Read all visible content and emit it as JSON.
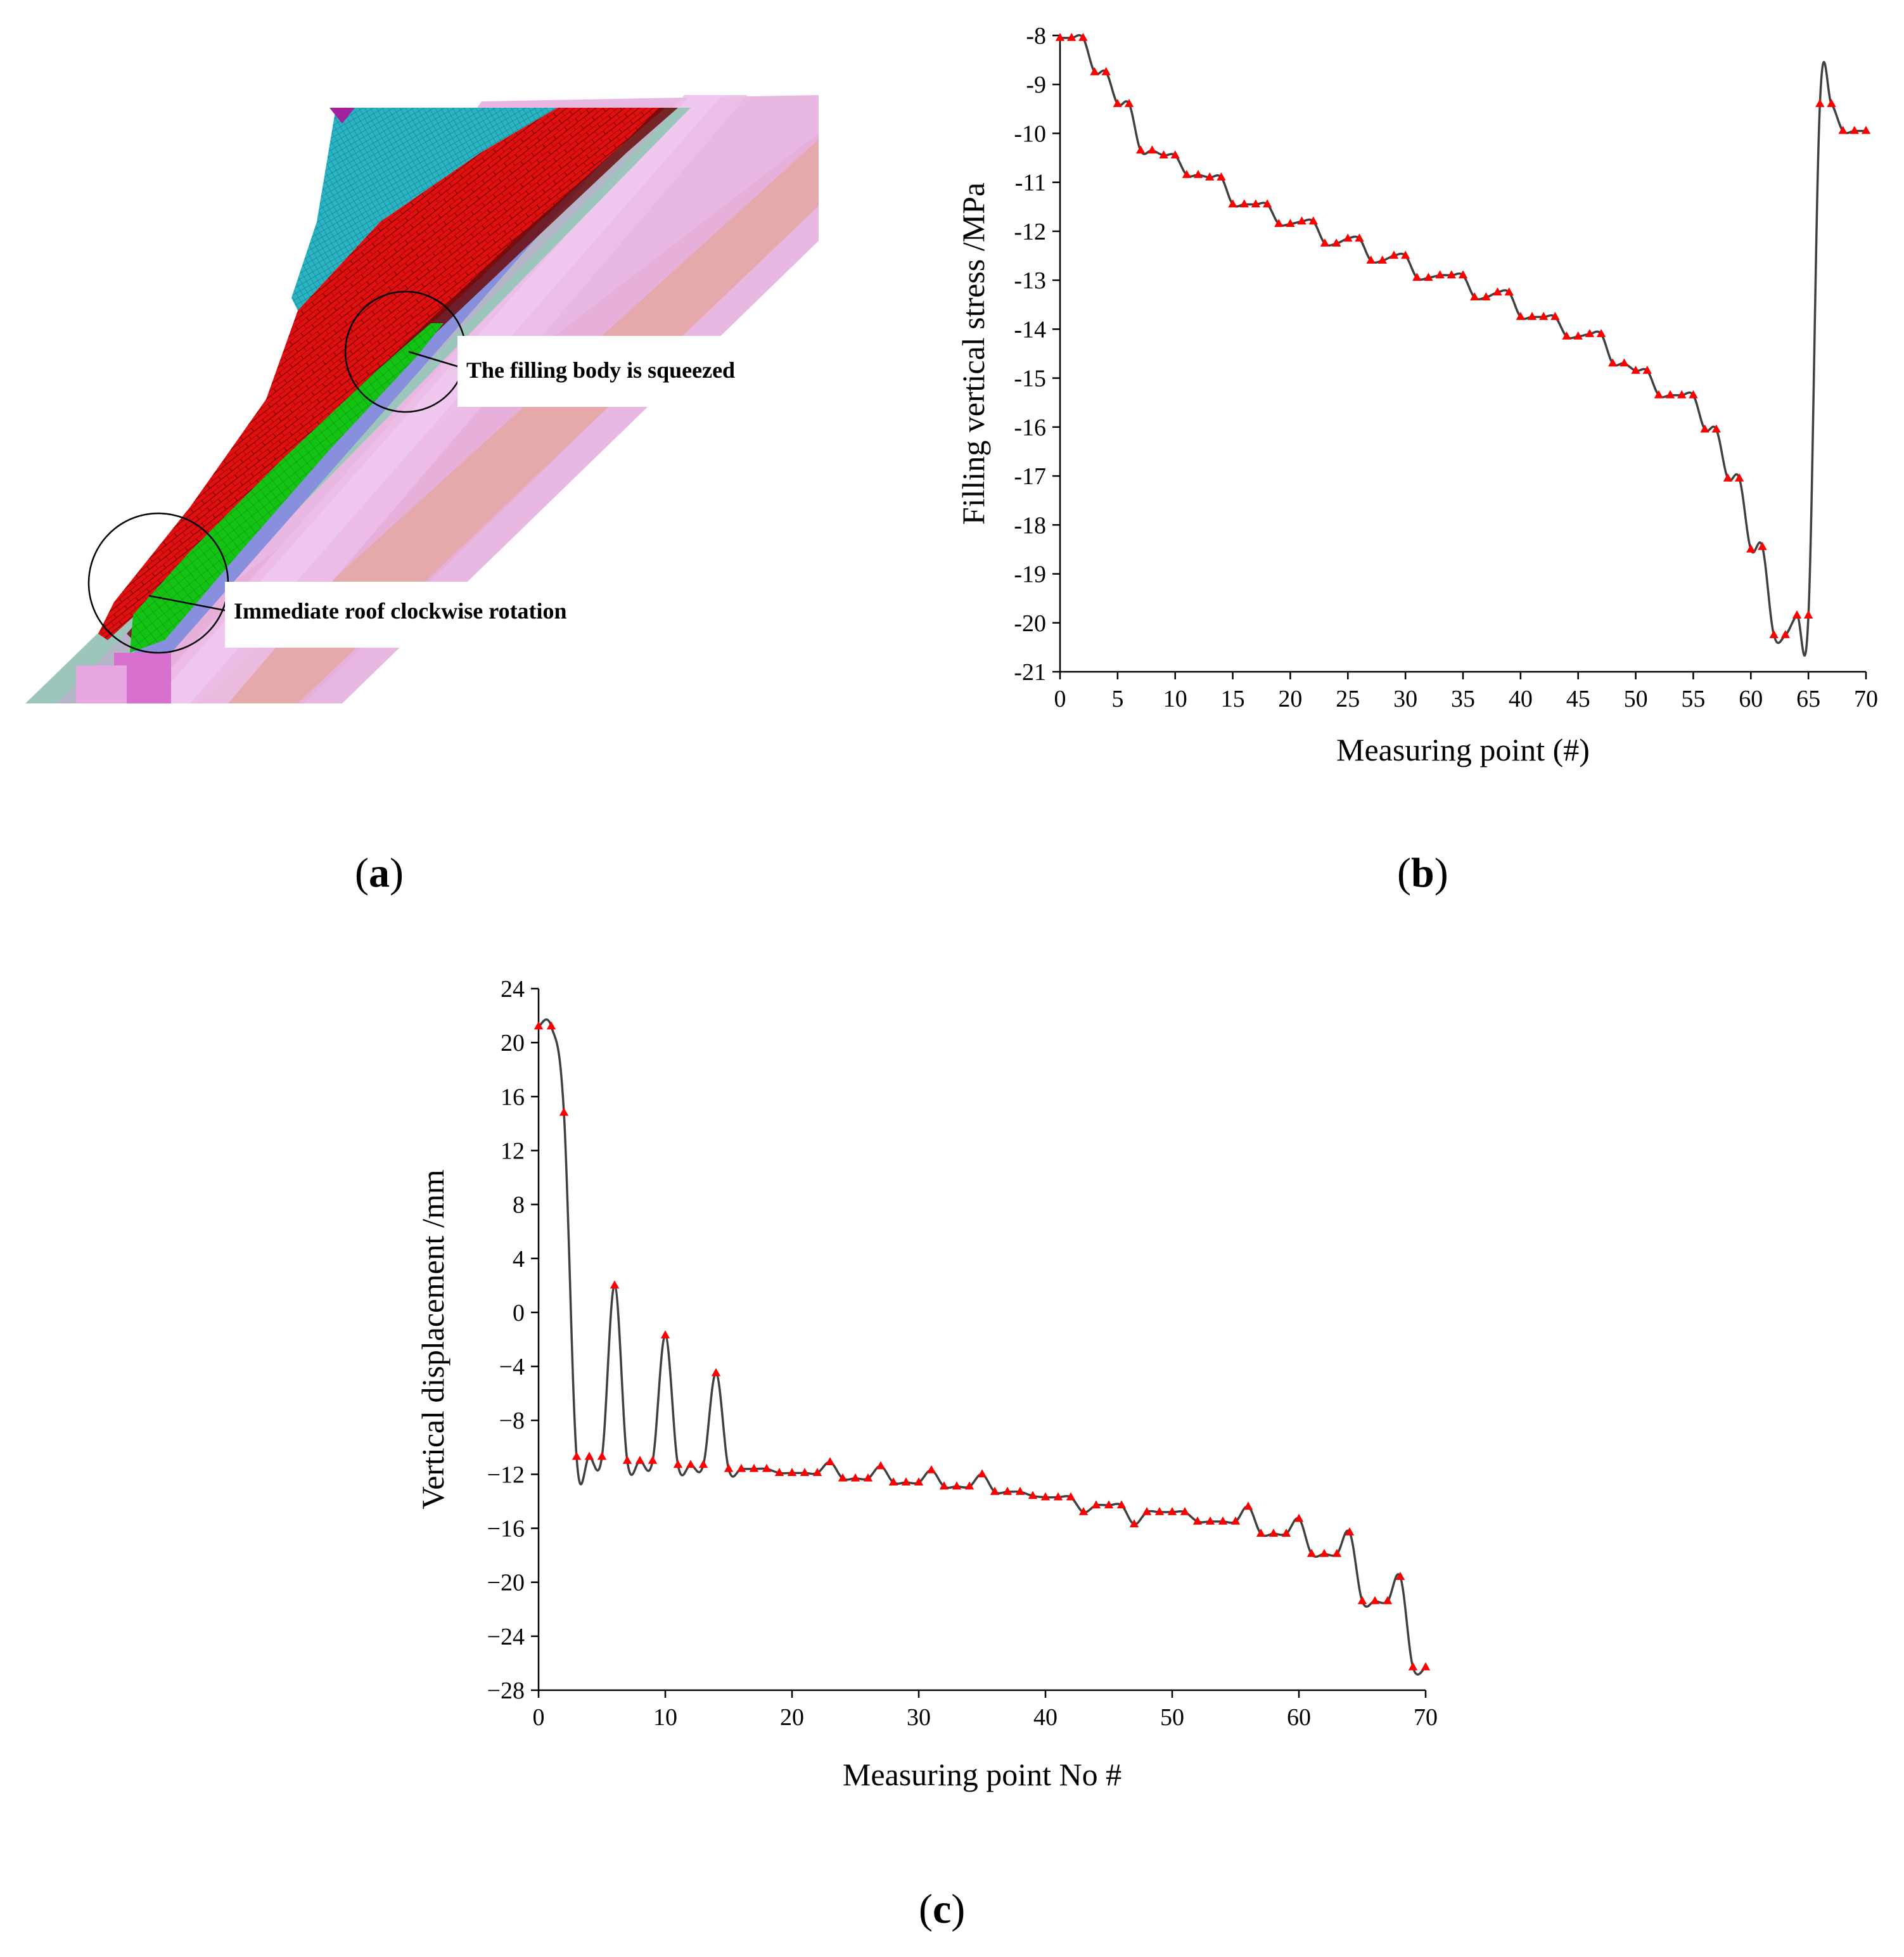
{
  "captions": {
    "a": "a",
    "b": "b",
    "c": "c"
  },
  "panel_a": {
    "annotation_top": "The filling body is squeezed",
    "annotation_bottom": "Immediate roof clockwise rotation",
    "colors": {
      "mesh_red": "#e01010",
      "mesh_cyan": "#2ab3c3",
      "filling_green": "#14c214",
      "pink_strata": "#e6b0e0",
      "salmon_strata": "#e6aaa8",
      "teal_strip": "#9cc6bc",
      "blue_strip": "#8890dd",
      "magenta": "#a020a0"
    }
  },
  "chart_data": [
    {
      "id": "b",
      "type": "line",
      "xlabel": "Measuring point (#)",
      "ylabel": "Filling vertical stress /MPa",
      "xlim": [
        0,
        70
      ],
      "ylim": [
        -21,
        -8
      ],
      "xticks": [
        0,
        5,
        10,
        15,
        20,
        25,
        30,
        35,
        40,
        45,
        50,
        55,
        60,
        65,
        70
      ],
      "yticks": [
        -8,
        -9,
        -10,
        -11,
        -12,
        -13,
        -14,
        -15,
        -16,
        -17,
        -18,
        -19,
        -20,
        -21
      ],
      "line_color": "#404040",
      "marker_color": "#ff0000",
      "marker": "triangle",
      "x": [
        0,
        1,
        2,
        3,
        4,
        5,
        6,
        7,
        8,
        9,
        10,
        11,
        12,
        13,
        14,
        15,
        16,
        17,
        18,
        19,
        20,
        21,
        22,
        23,
        24,
        25,
        26,
        27,
        28,
        29,
        30,
        31,
        32,
        33,
        34,
        35,
        36,
        37,
        38,
        39,
        40,
        41,
        42,
        43,
        44,
        45,
        46,
        47,
        48,
        49,
        50,
        51,
        52,
        53,
        54,
        55,
        56,
        57,
        58,
        59,
        60,
        61,
        62,
        63,
        64,
        65,
        66,
        67,
        68,
        69,
        70
      ],
      "y": [
        -8.05,
        -8.05,
        -8.05,
        -8.75,
        -8.75,
        -9.4,
        -9.4,
        -10.35,
        -10.35,
        -10.45,
        -10.45,
        -10.85,
        -10.85,
        -10.9,
        -10.9,
        -11.45,
        -11.45,
        -11.45,
        -11.45,
        -11.85,
        -11.85,
        -11.8,
        -11.8,
        -12.25,
        -12.25,
        -12.15,
        -12.15,
        -12.6,
        -12.6,
        -12.5,
        -12.5,
        -12.95,
        -12.95,
        -12.9,
        -12.9,
        -12.9,
        -13.35,
        -13.35,
        -13.25,
        -13.25,
        -13.75,
        -13.75,
        -13.75,
        -13.75,
        -14.15,
        -14.15,
        -14.1,
        -14.1,
        -14.7,
        -14.7,
        -14.85,
        -14.85,
        -15.35,
        -15.35,
        -15.35,
        -15.35,
        -16.05,
        -16.05,
        -17.05,
        -17.05,
        -18.5,
        -18.45,
        -20.25,
        -20.25,
        -19.85,
        -19.85,
        -9.4,
        -9.4,
        -9.95,
        -9.95,
        -9.95
      ]
    },
    {
      "id": "c",
      "type": "line",
      "xlabel": "Measuring point No #",
      "ylabel": "Vertical displacement /mm",
      "xlim": [
        0,
        70
      ],
      "ylim": [
        -28,
        24
      ],
      "xticks": [
        0,
        10,
        20,
        30,
        40,
        50,
        60,
        70
      ],
      "yticks": [
        24,
        20,
        16,
        12,
        8,
        4,
        0,
        -4,
        -8,
        -12,
        -16,
        -20,
        -24,
        -28
      ],
      "ytick_labels": [
        "24",
        "20",
        "16",
        "12",
        "8",
        "4",
        "0",
        "−4",
        "−8",
        "−12",
        "−16",
        "−20",
        "−24",
        "−28"
      ],
      "line_color": "#404040",
      "marker_color": "#ff0000",
      "marker": "triangle",
      "x": [
        0,
        1,
        2,
        3,
        4,
        5,
        6,
        7,
        8,
        9,
        10,
        11,
        12,
        13,
        14,
        15,
        16,
        17,
        18,
        19,
        20,
        21,
        22,
        23,
        24,
        25,
        26,
        27,
        28,
        29,
        30,
        31,
        32,
        33,
        34,
        35,
        36,
        37,
        38,
        39,
        40,
        41,
        42,
        43,
        44,
        45,
        46,
        47,
        48,
        49,
        50,
        51,
        52,
        53,
        54,
        55,
        56,
        57,
        58,
        59,
        60,
        61,
        62,
        63,
        64,
        65,
        66,
        67,
        68,
        69,
        70
      ],
      "y": [
        21.2,
        21.2,
        14.8,
        -10.7,
        -10.7,
        -10.7,
        2.0,
        -11.0,
        -11.0,
        -11.0,
        -1.7,
        -11.3,
        -11.3,
        -11.3,
        -4.5,
        -11.6,
        -11.6,
        -11.6,
        -11.6,
        -11.9,
        -11.9,
        -11.9,
        -11.9,
        -11.1,
        -12.3,
        -12.3,
        -12.3,
        -11.4,
        -12.6,
        -12.6,
        -12.6,
        -11.7,
        -12.9,
        -12.9,
        -12.9,
        -12.0,
        -13.3,
        -13.3,
        -13.3,
        -13.6,
        -13.7,
        -13.7,
        -13.7,
        -14.8,
        -14.3,
        -14.3,
        -14.3,
        -15.7,
        -14.8,
        -14.8,
        -14.8,
        -14.8,
        -15.5,
        -15.5,
        -15.5,
        -15.5,
        -14.4,
        -16.4,
        -16.4,
        -16.4,
        -15.3,
        -17.9,
        -17.9,
        -17.9,
        -16.3,
        -21.4,
        -21.4,
        -21.4,
        -19.6,
        -26.3,
        -26.3
      ]
    }
  ]
}
